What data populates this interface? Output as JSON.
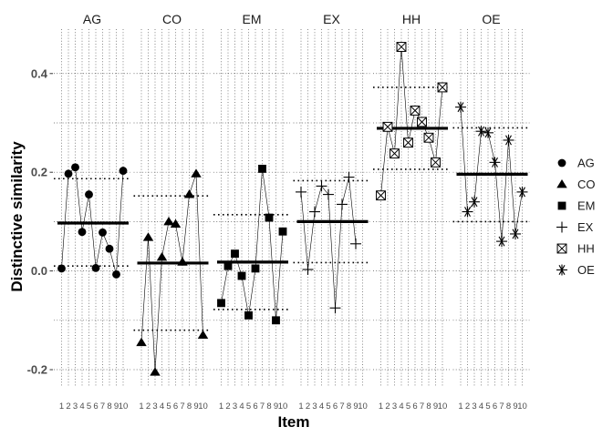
{
  "chart_data": {
    "type": "scatter",
    "xlabel": "Item",
    "ylabel": "Distinctive similarity",
    "ylim": [
      -0.235,
      0.49
    ],
    "yticks": [
      -0.2,
      0.0,
      0.2,
      0.4
    ],
    "ytick_labels": [
      "-0.2",
      "0.0",
      "0.2",
      "0.4"
    ],
    "items": [
      "1",
      "2",
      "3",
      "4",
      "5",
      "6",
      "7",
      "8",
      "9",
      "10"
    ],
    "grid": "dotted",
    "legend_position": "right",
    "panels": [
      {
        "name": "AG",
        "symbol": "circle",
        "values": [
          0.005,
          0.197,
          0.21,
          0.079,
          0.155,
          0.006,
          0.078,
          0.045,
          -0.007,
          0.203
        ],
        "mean": 0.097,
        "upper": 0.187,
        "lower": 0.01
      },
      {
        "name": "CO",
        "symbol": "triangle",
        "values": [
          -0.145,
          0.068,
          -0.205,
          0.028,
          0.1,
          0.095,
          0.018,
          0.155,
          0.197,
          -0.13
        ],
        "mean": 0.016,
        "upper": 0.152,
        "lower": -0.12
      },
      {
        "name": "EM",
        "symbol": "square",
        "values": [
          -0.065,
          0.01,
          0.035,
          -0.01,
          -0.09,
          0.005,
          0.207,
          0.108,
          -0.1,
          0.08
        ],
        "mean": 0.018,
        "upper": 0.114,
        "lower": -0.078
      },
      {
        "name": "EX",
        "symbol": "plus",
        "values": [
          0.16,
          0.003,
          0.12,
          0.172,
          0.155,
          -0.075,
          0.135,
          0.19,
          0.055,
          null
        ],
        "mean": 0.1,
        "upper": 0.183,
        "lower": 0.017
      },
      {
        "name": "HH",
        "symbol": "square-x",
        "values": [
          0.153,
          0.292,
          0.238,
          0.454,
          0.26,
          0.325,
          0.302,
          0.27,
          0.22,
          0.372
        ],
        "mean": 0.289,
        "upper": 0.372,
        "lower": 0.206
      },
      {
        "name": "OE",
        "symbol": "asterisk",
        "values": [
          0.332,
          0.12,
          0.14,
          0.283,
          0.28,
          0.22,
          0.06,
          0.265,
          0.075,
          0.16
        ],
        "mean": 0.196,
        "upper": 0.29,
        "lower": 0.1
      }
    ],
    "legend": [
      {
        "label": "AG",
        "symbol": "circle"
      },
      {
        "label": "CO",
        "symbol": "triangle"
      },
      {
        "label": "EM",
        "symbol": "square"
      },
      {
        "label": "EX",
        "symbol": "plus"
      },
      {
        "label": "HH",
        "symbol": "square-x"
      },
      {
        "label": "OE",
        "symbol": "asterisk"
      }
    ]
  }
}
